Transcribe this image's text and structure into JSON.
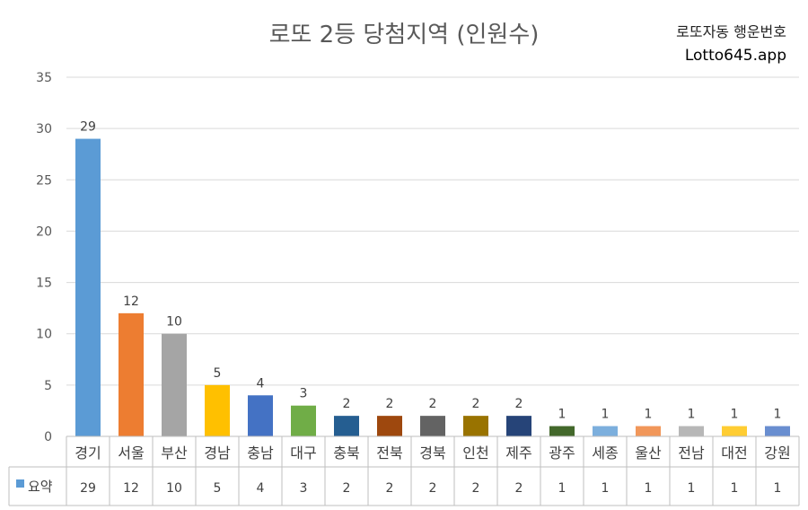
{
  "title": "로또 2등 당첨지역 (인원수)",
  "brand": {
    "line1": "로또자동 행운번호",
    "line2": "Lotto645.app"
  },
  "chart_data": {
    "type": "bar",
    "categories": [
      "경기",
      "서울",
      "부산",
      "경남",
      "충남",
      "대구",
      "충북",
      "전북",
      "경북",
      "인천",
      "제주",
      "광주",
      "세종",
      "울산",
      "전남",
      "대전",
      "강원"
    ],
    "series": [
      {
        "name": "요약",
        "values": [
          29,
          12,
          10,
          5,
          4,
          3,
          2,
          2,
          2,
          2,
          2,
          1,
          1,
          1,
          1,
          1,
          1
        ]
      }
    ],
    "colors": [
      "#5B9BD5",
      "#ED7D31",
      "#A5A5A5",
      "#FFC000",
      "#4472C4",
      "#70AD47",
      "#255E91",
      "#9E480E",
      "#636363",
      "#997300",
      "#264478",
      "#43682B",
      "#7CAFDD",
      "#F1975A",
      "#B7B7B7",
      "#FFCD33",
      "#698ED0"
    ],
    "ylim": [
      0,
      35
    ],
    "yticks": [
      0,
      5,
      10,
      15,
      20,
      25,
      30,
      35
    ],
    "gridlines": true,
    "data_labels": true,
    "data_table": true
  }
}
